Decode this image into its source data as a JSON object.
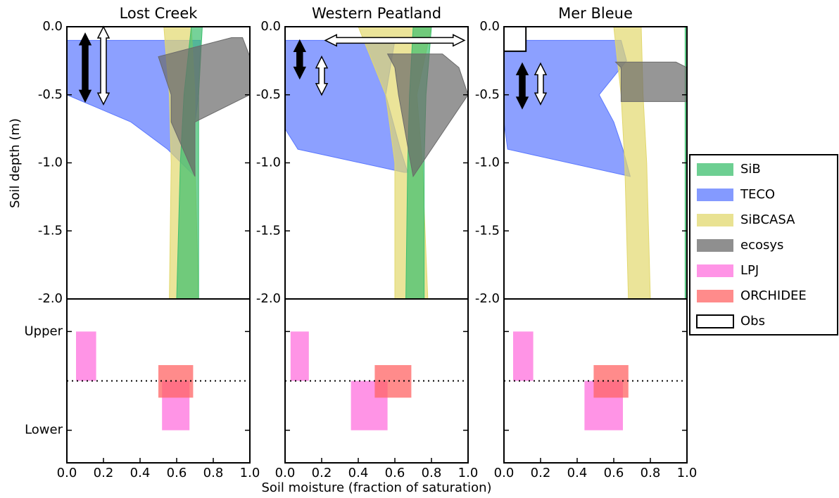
{
  "figure": {
    "x_label": "Soil moisture (fraction of saturation)",
    "y_label": "Soil depth (m)",
    "legend": [
      {
        "name": "SiB",
        "color": "#3cbf6e"
      },
      {
        "name": "TECO",
        "color": "#5b78ff"
      },
      {
        "name": "SiBCASA",
        "color": "#e2d86e"
      },
      {
        "name": "ecosys",
        "color": "#6a6a6a"
      },
      {
        "name": "LPJ",
        "color": "#ff70de"
      },
      {
        "name": "ORCHIDEE",
        "color": "#ff6464"
      },
      {
        "name": "Obs",
        "color": "#ffffff"
      }
    ]
  },
  "chart_data": [
    {
      "type": "band",
      "title": "Lost Creek",
      "xlim": [
        0,
        1
      ],
      "ylim": [
        -2,
        0
      ],
      "yticks": [
        {
          "value": 0,
          "label": "0.0"
        },
        -0.5,
        {
          "value": -1,
          "label": "-1.0"
        },
        -1.5,
        {
          "value": -2,
          "label": "-2.0"
        }
      ],
      "series": [
        {
          "model": 1,
          "depth": [
            -0.1,
            -0.5,
            -0.7,
            -0.9,
            -1.1
          ],
          "lo": [
            0,
            0,
            0.35,
            0.55,
            0.7
          ],
          "hi": [
            0.73,
            0.72,
            0.7,
            0.7,
            0.7
          ]
        },
        {
          "model": 2,
          "depth": [
            0,
            -0.5,
            -1,
            -2
          ],
          "lo": [
            0.53,
            0.56,
            0.57,
            0.56
          ],
          "hi": [
            0.68,
            0.7,
            0.7,
            0.72
          ]
        },
        {
          "model": 0,
          "depth": [
            0,
            -0.5,
            -1,
            -2
          ],
          "lo": [
            0.68,
            0.64,
            0.62,
            0.6
          ],
          "hi": [
            0.74,
            0.72,
            0.72,
            0.72
          ]
        },
        {
          "model": 3,
          "depth": [
            -0.08,
            -0.22,
            -0.5,
            -0.7,
            -1.1
          ],
          "lo": [
            0.9,
            0.5,
            0.57,
            0.57,
            0.7
          ],
          "hi": [
            0.96,
            1,
            1,
            0.7,
            0.7
          ]
        }
      ],
      "obs": [
        {
          "shape": "arrow",
          "x": 0.1,
          "y": [
            -0.05,
            -0.55
          ],
          "fill": "#000000"
        },
        {
          "shape": "arrow",
          "x": 0.2,
          "y": [
            0,
            -0.57
          ],
          "fill": "#ffffff"
        }
      ]
    },
    {
      "type": "band",
      "title": "Western Peatland",
      "xlim": [
        0,
        1
      ],
      "ylim": [
        -2,
        0
      ],
      "yticks": [
        {
          "value": 0,
          "label": "0.0"
        },
        -0.5,
        {
          "value": -1,
          "label": "-1.0"
        },
        -1.5,
        {
          "value": -2,
          "label": "-2.0"
        }
      ],
      "series": [
        {
          "model": 1,
          "depth": [
            -0.1,
            -0.5,
            -0.75,
            -0.9,
            -1.07
          ],
          "lo": [
            0,
            0,
            0,
            0.07,
            0.65
          ],
          "hi": [
            0.6,
            0.55,
            0.6,
            0.63,
            0.67
          ]
        },
        {
          "model": 2,
          "depth": [
            0,
            -0.5,
            -1,
            -2
          ],
          "lo": [
            0.4,
            0.55,
            0.6,
            0.6
          ],
          "hi": [
            0.8,
            0.72,
            0.75,
            0.78
          ]
        },
        {
          "model": 0,
          "depth": [
            0,
            -0.5,
            -1,
            -2
          ],
          "lo": [
            0.7,
            0.68,
            0.67,
            0.66
          ],
          "hi": [
            0.8,
            0.77,
            0.76,
            0.76
          ]
        },
        {
          "model": 3,
          "depth": [
            -0.2,
            -0.3,
            -0.5,
            -1.1
          ],
          "lo": [
            0.56,
            0.6,
            0.62,
            0.7
          ],
          "hi": [
            0.86,
            0.95,
            1,
            0.7
          ]
        }
      ],
      "obs": [
        {
          "shape": "arrow",
          "x": [
            0.22,
            0.98
          ],
          "y": -0.1,
          "fill": "#ffffff"
        },
        {
          "shape": "arrow",
          "x": 0.08,
          "y": [
            -0.1,
            -0.38
          ],
          "fill": "#000000"
        },
        {
          "shape": "arrow",
          "x": 0.2,
          "y": [
            -0.22,
            -0.5
          ],
          "fill": "#ffffff"
        }
      ]
    },
    {
      "type": "band",
      "title": "Mer Bleue",
      "xlim": [
        0,
        1
      ],
      "ylim": [
        -2,
        0
      ],
      "yticks": [
        {
          "value": 0,
          "label": "0.0"
        },
        -0.5,
        {
          "value": -1,
          "label": "-1.0"
        },
        -1.5,
        {
          "value": -2,
          "label": "-2.0"
        }
      ],
      "series": [
        {
          "model": 1,
          "depth": [
            -0.1,
            -0.25,
            -0.5,
            -0.7,
            -0.9,
            -1.1
          ],
          "lo": [
            0,
            0,
            0,
            0,
            0.02,
            0.69
          ],
          "hi": [
            0.64,
            0.67,
            0.52,
            0.6,
            0.65,
            0.69
          ]
        },
        {
          "model": 2,
          "depth": [
            0,
            -0.5,
            -1,
            -2
          ],
          "lo": [
            0.6,
            0.64,
            0.66,
            0.68
          ],
          "hi": [
            0.75,
            0.76,
            0.78,
            0.8
          ]
        },
        {
          "model": 0,
          "depth": [
            0,
            -2
          ],
          "lo": [
            0.99,
            0.99
          ],
          "hi": [
            1,
            1
          ]
        },
        {
          "model": 3,
          "depth": [
            -0.26,
            -0.3,
            -0.55
          ],
          "lo": [
            0.61,
            0.64,
            0.64
          ],
          "hi": [
            0.94,
            1,
            1
          ]
        }
      ],
      "obs": [
        {
          "shape": "box",
          "x": [
            0,
            0.12
          ],
          "y": [
            0,
            -0.18
          ],
          "fill": "#ffffff"
        },
        {
          "shape": "arrow",
          "x": 0.1,
          "y": [
            -0.27,
            -0.6
          ],
          "fill": "#000000"
        },
        {
          "shape": "arrow",
          "x": 0.2,
          "y": [
            -0.27,
            -0.57
          ],
          "fill": "#ffffff"
        }
      ]
    },
    {
      "type": "boxes",
      "xlim": [
        0,
        1
      ],
      "ylim": [
        -0.33,
        1.33
      ],
      "xticks": [
        {
          "value": 0,
          "label": "0.0"
        },
        0.2,
        0.4,
        0.6,
        0.8,
        {
          "value": 1,
          "label": "1.0"
        }
      ],
      "yticks": [
        {
          "value": 1,
          "label": "Upper"
        },
        {
          "value": 0,
          "label": "Lower"
        }
      ],
      "hline": 0.5,
      "boxes": [
        {
          "model": 4,
          "x": [
            0.05,
            0.16
          ],
          "y": [
            0.5,
            1
          ]
        },
        {
          "model": 4,
          "x": [
            0.52,
            0.67
          ],
          "y": [
            0,
            0.5
          ]
        },
        {
          "model": 5,
          "x": [
            0.5,
            0.69
          ],
          "y": [
            0.33,
            0.66
          ]
        }
      ]
    },
    {
      "type": "boxes",
      "xlim": [
        0,
        1
      ],
      "ylim": [
        -0.33,
        1.33
      ],
      "xticks": [
        {
          "value": 0,
          "label": "0.0"
        },
        0.2,
        0.4,
        0.6,
        0.8,
        {
          "value": 1,
          "label": "1.0"
        }
      ],
      "yticks": [
        1,
        0
      ],
      "ytick_labels": false,
      "hline": 0.5,
      "boxes": [
        {
          "model": 4,
          "x": [
            0.03,
            0.13
          ],
          "y": [
            0.5,
            1
          ]
        },
        {
          "model": 4,
          "x": [
            0.36,
            0.56
          ],
          "y": [
            0,
            0.5
          ]
        },
        {
          "model": 5,
          "x": [
            0.49,
            0.69
          ],
          "y": [
            0.33,
            0.66
          ]
        }
      ]
    },
    {
      "type": "boxes",
      "xlim": [
        0,
        1
      ],
      "ylim": [
        -0.33,
        1.33
      ],
      "xticks": [
        {
          "value": 0,
          "label": "0.0"
        },
        0.2,
        0.4,
        0.6,
        0.8,
        {
          "value": 1,
          "label": "1.0"
        }
      ],
      "yticks": [
        1,
        0
      ],
      "ytick_labels": false,
      "hline": 0.5,
      "boxes": [
        {
          "model": 4,
          "x": [
            0.05,
            0.16
          ],
          "y": [
            0.5,
            1
          ]
        },
        {
          "model": 4,
          "x": [
            0.44,
            0.65
          ],
          "y": [
            0,
            0.5
          ]
        },
        {
          "model": 5,
          "x": [
            0.49,
            0.68
          ],
          "y": [
            0.33,
            0.66
          ]
        }
      ]
    }
  ]
}
